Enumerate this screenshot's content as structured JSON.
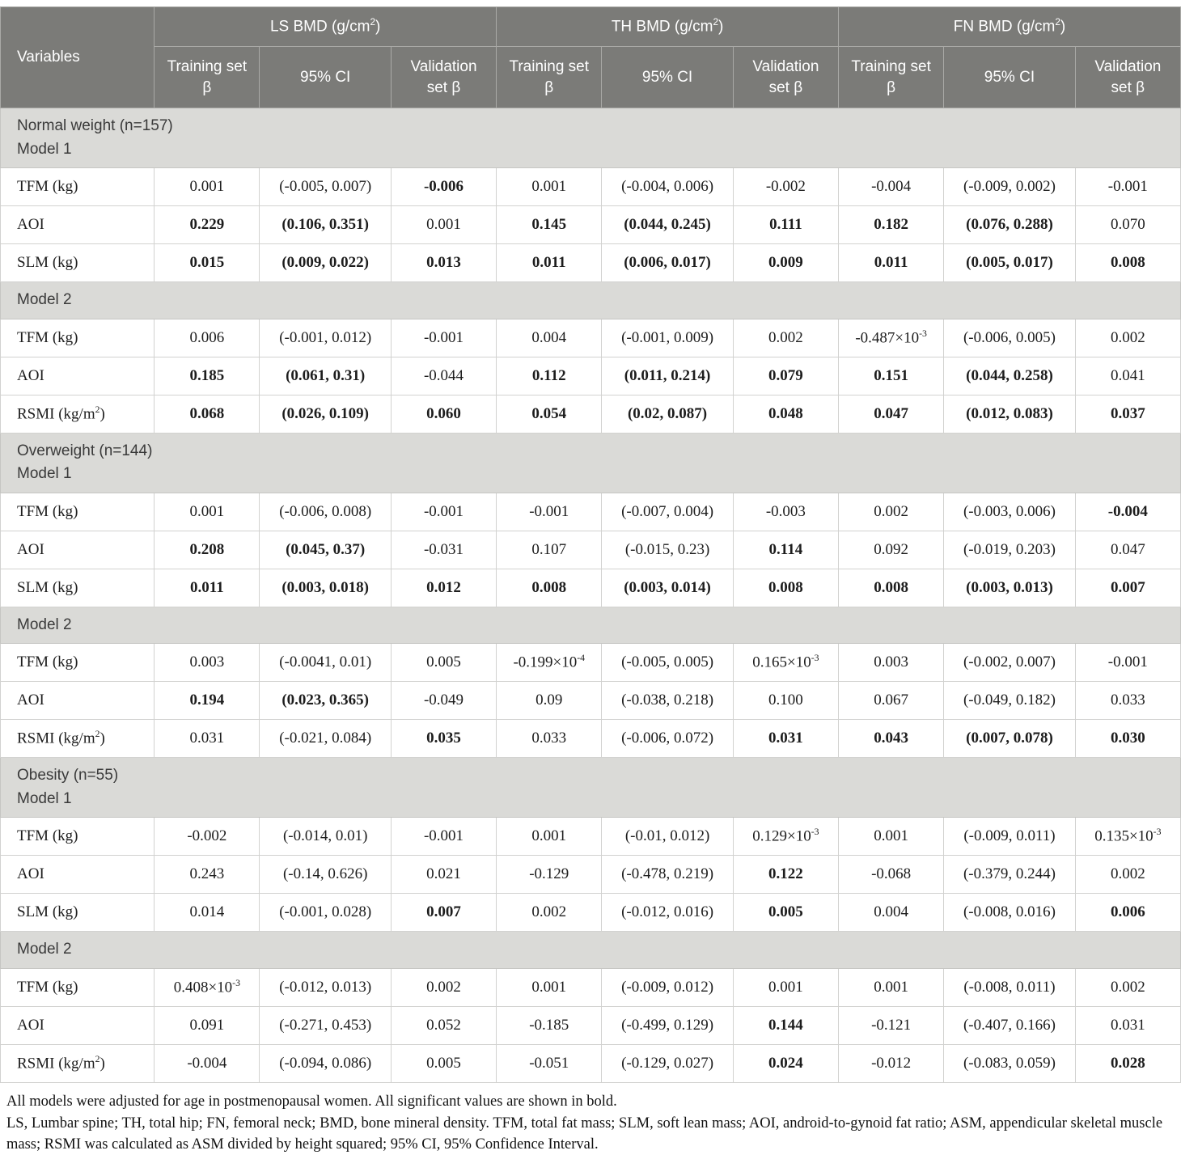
{
  "table": {
    "variables_header": "Variables",
    "groups": [
      {
        "label": "LS BMD (g/cm^{2})"
      },
      {
        "label": "TH BMD (g/cm^{2})"
      },
      {
        "label": "FN BMD (g/cm^{2})"
      }
    ],
    "sub_headers": [
      "Training set β",
      "95% CI",
      "Validation set β"
    ],
    "sections": [
      {
        "title_lines": [
          "Normal weight (n=157)",
          "Model 1"
        ],
        "rows": [
          {
            "var": "TFM (kg)",
            "cells": [
              {
                "v": "0.001",
                "b": false
              },
              {
                "v": "(-0.005, 0.007)",
                "b": false
              },
              {
                "v": "-0.006",
                "b": true
              },
              {
                "v": "0.001",
                "b": false
              },
              {
                "v": "(-0.004, 0.006)",
                "b": false
              },
              {
                "v": "-0.002",
                "b": false
              },
              {
                "v": "-0.004",
                "b": false
              },
              {
                "v": "(-0.009, 0.002)",
                "b": false
              },
              {
                "v": "-0.001",
                "b": false
              }
            ]
          },
          {
            "var": "AOI",
            "cells": [
              {
                "v": "0.229",
                "b": true
              },
              {
                "v": "(0.106, 0.351)",
                "b": true
              },
              {
                "v": "0.001",
                "b": false
              },
              {
                "v": "0.145",
                "b": true
              },
              {
                "v": "(0.044, 0.245)",
                "b": true
              },
              {
                "v": "0.111",
                "b": true
              },
              {
                "v": "0.182",
                "b": true
              },
              {
                "v": "(0.076, 0.288)",
                "b": true
              },
              {
                "v": "0.070",
                "b": false
              }
            ]
          },
          {
            "var": "SLM (kg)",
            "cells": [
              {
                "v": "0.015",
                "b": true
              },
              {
                "v": "(0.009, 0.022)",
                "b": true
              },
              {
                "v": "0.013",
                "b": true
              },
              {
                "v": "0.011",
                "b": true
              },
              {
                "v": "(0.006, 0.017)",
                "b": true
              },
              {
                "v": "0.009",
                "b": true
              },
              {
                "v": "0.011",
                "b": true
              },
              {
                "v": "(0.005, 0.017)",
                "b": true
              },
              {
                "v": "0.008",
                "b": true
              }
            ]
          }
        ]
      },
      {
        "title_lines": [
          "Model 2"
        ],
        "rows": [
          {
            "var": "TFM (kg)",
            "cells": [
              {
                "v": "0.006",
                "b": false
              },
              {
                "v": "(-0.001, 0.012)",
                "b": false
              },
              {
                "v": "-0.001",
                "b": false
              },
              {
                "v": "0.004",
                "b": false
              },
              {
                "v": "(-0.001, 0.009)",
                "b": false
              },
              {
                "v": "0.002",
                "b": false
              },
              {
                "v": "-0.487×10^{-3}",
                "b": false
              },
              {
                "v": "(-0.006, 0.005)",
                "b": false
              },
              {
                "v": "0.002",
                "b": false
              }
            ]
          },
          {
            "var": "AOI",
            "cells": [
              {
                "v": "0.185",
                "b": true
              },
              {
                "v": "(0.061, 0.31)",
                "b": true
              },
              {
                "v": "-0.044",
                "b": false
              },
              {
                "v": "0.112",
                "b": true
              },
              {
                "v": "(0.011, 0.214)",
                "b": true
              },
              {
                "v": "0.079",
                "b": true
              },
              {
                "v": "0.151",
                "b": true
              },
              {
                "v": "(0.044, 0.258)",
                "b": true
              },
              {
                "v": "0.041",
                "b": false
              }
            ]
          },
          {
            "var": "RSMI (kg/m^{2})",
            "cells": [
              {
                "v": "0.068",
                "b": true
              },
              {
                "v": "(0.026, 0.109)",
                "b": true
              },
              {
                "v": "0.060",
                "b": true
              },
              {
                "v": "0.054",
                "b": true
              },
              {
                "v": "(0.02, 0.087)",
                "b": true
              },
              {
                "v": "0.048",
                "b": true
              },
              {
                "v": "0.047",
                "b": true
              },
              {
                "v": "(0.012, 0.083)",
                "b": true
              },
              {
                "v": "0.037",
                "b": true
              }
            ]
          }
        ]
      },
      {
        "title_lines": [
          "Overweight (n=144)",
          "Model 1"
        ],
        "rows": [
          {
            "var": "TFM (kg)",
            "cells": [
              {
                "v": "0.001",
                "b": false
              },
              {
                "v": "(-0.006, 0.008)",
                "b": false
              },
              {
                "v": "-0.001",
                "b": false
              },
              {
                "v": "-0.001",
                "b": false
              },
              {
                "v": "(-0.007, 0.004)",
                "b": false
              },
              {
                "v": "-0.003",
                "b": false
              },
              {
                "v": "0.002",
                "b": false
              },
              {
                "v": "(-0.003, 0.006)",
                "b": false
              },
              {
                "v": "-0.004",
                "b": true
              }
            ]
          },
          {
            "var": "AOI",
            "cells": [
              {
                "v": "0.208",
                "b": true
              },
              {
                "v": "(0.045, 0.37)",
                "b": true
              },
              {
                "v": "-0.031",
                "b": false
              },
              {
                "v": "0.107",
                "b": false
              },
              {
                "v": "(-0.015, 0.23)",
                "b": false
              },
              {
                "v": "0.114",
                "b": true
              },
              {
                "v": "0.092",
                "b": false
              },
              {
                "v": "(-0.019, 0.203)",
                "b": false
              },
              {
                "v": "0.047",
                "b": false
              }
            ]
          },
          {
            "var": "SLM (kg)",
            "cells": [
              {
                "v": "0.011",
                "b": true
              },
              {
                "v": "(0.003, 0.018)",
                "b": true
              },
              {
                "v": "0.012",
                "b": true
              },
              {
                "v": "0.008",
                "b": true
              },
              {
                "v": "(0.003, 0.014)",
                "b": true
              },
              {
                "v": "0.008",
                "b": true
              },
              {
                "v": "0.008",
                "b": true
              },
              {
                "v": "(0.003, 0.013)",
                "b": true
              },
              {
                "v": "0.007",
                "b": true
              }
            ]
          }
        ]
      },
      {
        "title_lines": [
          "Model 2"
        ],
        "rows": [
          {
            "var": "TFM (kg)",
            "cells": [
              {
                "v": "0.003",
                "b": false
              },
              {
                "v": "(-0.0041, 0.01)",
                "b": false
              },
              {
                "v": "0.005",
                "b": false
              },
              {
                "v": "-0.199×10^{-4}",
                "b": false
              },
              {
                "v": "(-0.005, 0.005)",
                "b": false
              },
              {
                "v": "0.165×10^{-3}",
                "b": false
              },
              {
                "v": "0.003",
                "b": false
              },
              {
                "v": "(-0.002, 0.007)",
                "b": false
              },
              {
                "v": "-0.001",
                "b": false
              }
            ]
          },
          {
            "var": "AOI",
            "cells": [
              {
                "v": "0.194",
                "b": true
              },
              {
                "v": "(0.023, 0.365)",
                "b": true
              },
              {
                "v": "-0.049",
                "b": false
              },
              {
                "v": "0.09",
                "b": false
              },
              {
                "v": "(-0.038, 0.218)",
                "b": false
              },
              {
                "v": "0.100",
                "b": false
              },
              {
                "v": "0.067",
                "b": false
              },
              {
                "v": "(-0.049, 0.182)",
                "b": false
              },
              {
                "v": "0.033",
                "b": false
              }
            ]
          },
          {
            "var": "RSMI (kg/m^{2})",
            "cells": [
              {
                "v": "0.031",
                "b": false
              },
              {
                "v": "(-0.021, 0.084)",
                "b": false
              },
              {
                "v": "0.035",
                "b": true
              },
              {
                "v": "0.033",
                "b": false
              },
              {
                "v": "(-0.006, 0.072)",
                "b": false
              },
              {
                "v": "0.031",
                "b": true
              },
              {
                "v": "0.043",
                "b": true
              },
              {
                "v": "(0.007, 0.078)",
                "b": true
              },
              {
                "v": "0.030",
                "b": true
              }
            ]
          }
        ]
      },
      {
        "title_lines": [
          "Obesity (n=55)",
          "Model 1"
        ],
        "rows": [
          {
            "var": "TFM (kg)",
            "cells": [
              {
                "v": "-0.002",
                "b": false
              },
              {
                "v": "(-0.014, 0.01)",
                "b": false
              },
              {
                "v": "-0.001",
                "b": false
              },
              {
                "v": "0.001",
                "b": false
              },
              {
                "v": "(-0.01, 0.012)",
                "b": false
              },
              {
                "v": "0.129×10^{-3}",
                "b": false
              },
              {
                "v": "0.001",
                "b": false
              },
              {
                "v": "(-0.009, 0.011)",
                "b": false
              },
              {
                "v": "0.135×10^{-3}",
                "b": false
              }
            ]
          },
          {
            "var": "AOI",
            "cells": [
              {
                "v": "0.243",
                "b": false
              },
              {
                "v": "(-0.14, 0.626)",
                "b": false
              },
              {
                "v": "0.021",
                "b": false
              },
              {
                "v": "-0.129",
                "b": false
              },
              {
                "v": "(-0.478, 0.219)",
                "b": false
              },
              {
                "v": "0.122",
                "b": true
              },
              {
                "v": "-0.068",
                "b": false
              },
              {
                "v": "(-0.379, 0.244)",
                "b": false
              },
              {
                "v": "0.002",
                "b": false
              }
            ]
          },
          {
            "var": "SLM (kg)",
            "cells": [
              {
                "v": "0.014",
                "b": false
              },
              {
                "v": "(-0.001, 0.028)",
                "b": false
              },
              {
                "v": "0.007",
                "b": true
              },
              {
                "v": "0.002",
                "b": false
              },
              {
                "v": "(-0.012, 0.016)",
                "b": false
              },
              {
                "v": "0.005",
                "b": true
              },
              {
                "v": "0.004",
                "b": false
              },
              {
                "v": "(-0.008, 0.016)",
                "b": false
              },
              {
                "v": "0.006",
                "b": true
              }
            ]
          }
        ]
      },
      {
        "title_lines": [
          "Model 2"
        ],
        "rows": [
          {
            "var": "TFM (kg)",
            "cells": [
              {
                "v": "0.408×10^{-3}",
                "b": false
              },
              {
                "v": "(-0.012, 0.013)",
                "b": false
              },
              {
                "v": "0.002",
                "b": false
              },
              {
                "v": "0.001",
                "b": false
              },
              {
                "v": "(-0.009, 0.012)",
                "b": false
              },
              {
                "v": "0.001",
                "b": false
              },
              {
                "v": "0.001",
                "b": false
              },
              {
                "v": "(-0.008, 0.011)",
                "b": false
              },
              {
                "v": "0.002",
                "b": false
              }
            ]
          },
          {
            "var": "AOI",
            "cells": [
              {
                "v": "0.091",
                "b": false
              },
              {
                "v": "(-0.271, 0.453)",
                "b": false
              },
              {
                "v": "0.052",
                "b": false
              },
              {
                "v": "-0.185",
                "b": false
              },
              {
                "v": "(-0.499, 0.129)",
                "b": false
              },
              {
                "v": "0.144",
                "b": true
              },
              {
                "v": "-0.121",
                "b": false
              },
              {
                "v": "(-0.407, 0.166)",
                "b": false
              },
              {
                "v": "0.031",
                "b": false
              }
            ]
          },
          {
            "var": "RSMI (kg/m^{2})",
            "cells": [
              {
                "v": "-0.004",
                "b": false
              },
              {
                "v": "(-0.094, 0.086)",
                "b": false
              },
              {
                "v": "0.005",
                "b": false
              },
              {
                "v": "-0.051",
                "b": false
              },
              {
                "v": "(-0.129, 0.027)",
                "b": false
              },
              {
                "v": "0.024",
                "b": true
              },
              {
                "v": "-0.012",
                "b": false
              },
              {
                "v": "(-0.083, 0.059)",
                "b": false
              },
              {
                "v": "0.028",
                "b": true
              }
            ]
          }
        ]
      }
    ]
  },
  "footnotes": [
    "All models were adjusted for age in postmenopausal women. All significant values are shown in bold.",
    "LS, Lumbar spine; TH, total hip; FN, femoral neck; BMD, bone mineral density. TFM, total fat mass; SLM, soft lean mass; AOI, android-to-gynoid fat ratio; ASM, appendicular skeletal muscle mass; RSMI was calculated as ASM divided by height squared; 95% CI, 95% Confidence Interval."
  ],
  "colors": {
    "header_bg": "#7b7b78",
    "band_bg": "#dadad7",
    "row_border": "#d2d2d0",
    "header_text": "#ffffff",
    "body_text": "#1d1d1d"
  }
}
